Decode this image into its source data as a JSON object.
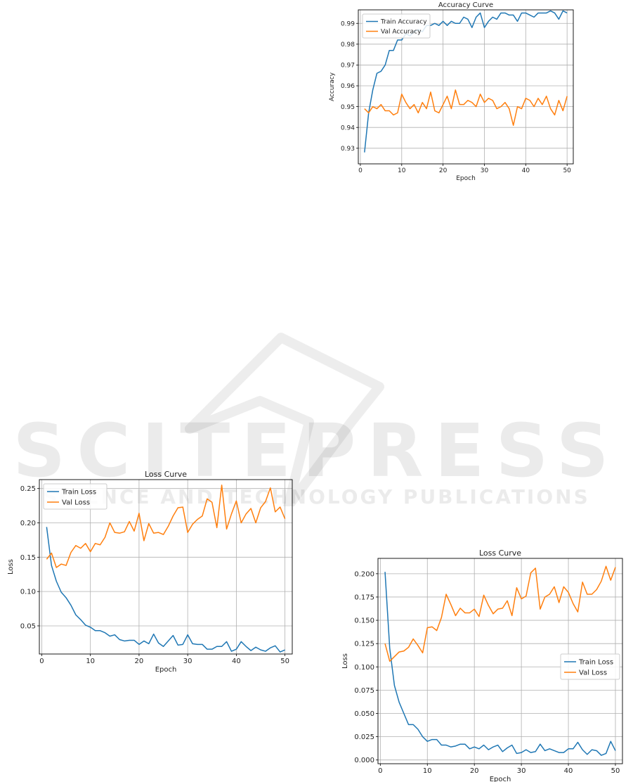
{
  "watermark": {
    "main": "SCITEPRESS",
    "sub": "SCIENCE AND TECHNOLOGY PUBLICATIONS"
  },
  "colors": {
    "train": "#1f77b4",
    "val": "#ff7f0e",
    "grid": "#b0b0b0",
    "axis": "#000000"
  },
  "chart_data": [
    {
      "id": "accuracy",
      "type": "line",
      "title": "Accuracy Curve",
      "xlabel": "Epoch",
      "ylabel": "Accuracy",
      "xlim": [
        -0.5,
        51.5
      ],
      "ylim": [
        0.9225,
        0.9965
      ],
      "xticks": [
        0,
        10,
        20,
        30,
        40,
        50
      ],
      "yticks": [
        0.93,
        0.94,
        0.95,
        0.96,
        0.97,
        0.98,
        0.99
      ],
      "ytick_labels": [
        "0.93",
        "0.94",
        "0.95",
        "0.96",
        "0.97",
        "0.98",
        "0.99"
      ],
      "grid": true,
      "legend": "upper-left",
      "series": [
        {
          "name": "Train Accuracy",
          "color": "#1f77b4",
          "values": [
            0.928,
            0.947,
            0.958,
            0.966,
            0.967,
            0.97,
            0.977,
            0.977,
            0.982,
            0.982,
            0.985,
            0.984,
            0.986,
            0.987,
            0.986,
            0.989,
            0.989,
            0.99,
            0.989,
            0.991,
            0.989,
            0.991,
            0.99,
            0.99,
            0.993,
            0.992,
            0.988,
            0.993,
            0.995,
            0.988,
            0.991,
            0.993,
            0.992,
            0.995,
            0.995,
            0.994,
            0.994,
            0.991,
            0.995,
            0.995,
            0.994,
            0.993,
            0.995,
            0.995,
            0.995,
            0.996,
            0.995,
            0.992,
            0.996,
            0.995
          ]
        },
        {
          "name": "Val Accuracy",
          "color": "#ff7f0e",
          "values": [
            0.949,
            0.947,
            0.95,
            0.949,
            0.951,
            0.948,
            0.948,
            0.946,
            0.947,
            0.956,
            0.952,
            0.949,
            0.951,
            0.947,
            0.952,
            0.949,
            0.957,
            0.948,
            0.947,
            0.951,
            0.955,
            0.949,
            0.958,
            0.951,
            0.951,
            0.953,
            0.952,
            0.95,
            0.956,
            0.952,
            0.954,
            0.953,
            0.949,
            0.95,
            0.952,
            0.949,
            0.941,
            0.95,
            0.949,
            0.954,
            0.953,
            0.95,
            0.954,
            0.951,
            0.955,
            0.949,
            0.946,
            0.953,
            0.948,
            0.955
          ]
        }
      ]
    },
    {
      "id": "loss-left",
      "type": "line",
      "title": "Loss Curve",
      "xlabel": "Epoch",
      "ylabel": "Loss",
      "xlim": [
        -0.5,
        51.5
      ],
      "ylim": [
        0.009,
        0.263
      ],
      "xticks": [
        0,
        10,
        20,
        30,
        40,
        50
      ],
      "yticks": [
        0.05,
        0.1,
        0.15,
        0.2,
        0.25
      ],
      "ytick_labels": [
        "0.05",
        "0.10",
        "0.15",
        "0.20",
        "0.25"
      ],
      "grid": true,
      "legend": "upper-left",
      "series": [
        {
          "name": "Train Loss",
          "color": "#1f77b4",
          "values": [
            0.194,
            0.138,
            0.115,
            0.099,
            0.091,
            0.08,
            0.066,
            0.059,
            0.051,
            0.048,
            0.043,
            0.043,
            0.04,
            0.035,
            0.037,
            0.03,
            0.028,
            0.029,
            0.029,
            0.023,
            0.028,
            0.024,
            0.038,
            0.025,
            0.02,
            0.028,
            0.036,
            0.022,
            0.023,
            0.037,
            0.024,
            0.023,
            0.023,
            0.016,
            0.016,
            0.02,
            0.02,
            0.027,
            0.013,
            0.016,
            0.027,
            0.02,
            0.014,
            0.019,
            0.015,
            0.013,
            0.018,
            0.021,
            0.012,
            0.015
          ]
        },
        {
          "name": "Val Loss",
          "color": "#ff7f0e",
          "values": [
            0.147,
            0.156,
            0.135,
            0.14,
            0.138,
            0.157,
            0.167,
            0.163,
            0.17,
            0.158,
            0.17,
            0.168,
            0.179,
            0.2,
            0.186,
            0.185,
            0.187,
            0.202,
            0.188,
            0.214,
            0.174,
            0.199,
            0.185,
            0.186,
            0.183,
            0.195,
            0.21,
            0.222,
            0.223,
            0.186,
            0.198,
            0.205,
            0.21,
            0.235,
            0.23,
            0.193,
            0.255,
            0.191,
            0.213,
            0.232,
            0.2,
            0.213,
            0.221,
            0.2,
            0.222,
            0.231,
            0.251,
            0.216,
            0.223,
            0.206
          ]
        }
      ]
    },
    {
      "id": "loss-right",
      "type": "line",
      "title": "Loss Curve",
      "xlabel": "Epoch",
      "ylabel": "Loss",
      "xlim": [
        -0.5,
        51.5
      ],
      "ylim": [
        -0.004,
        0.2165
      ],
      "xticks": [
        0,
        10,
        20,
        30,
        40,
        50
      ],
      "yticks": [
        0.0,
        0.025,
        0.05,
        0.075,
        0.1,
        0.125,
        0.15,
        0.175,
        0.2
      ],
      "ytick_labels": [
        "0.000",
        "0.025",
        "0.050",
        "0.075",
        "0.100",
        "0.125",
        "0.150",
        "0.175",
        "0.200"
      ],
      "grid": true,
      "legend": "center-right",
      "series": [
        {
          "name": "Train Loss",
          "color": "#1f77b4",
          "values": [
            0.202,
            0.12,
            0.08,
            0.062,
            0.05,
            0.038,
            0.038,
            0.033,
            0.025,
            0.02,
            0.022,
            0.022,
            0.016,
            0.016,
            0.014,
            0.015,
            0.017,
            0.017,
            0.012,
            0.014,
            0.012,
            0.016,
            0.011,
            0.014,
            0.016,
            0.009,
            0.013,
            0.016,
            0.007,
            0.008,
            0.011,
            0.008,
            0.009,
            0.017,
            0.01,
            0.012,
            0.01,
            0.008,
            0.008,
            0.012,
            0.012,
            0.019,
            0.011,
            0.006,
            0.011,
            0.01,
            0.005,
            0.007,
            0.02,
            0.01
          ]
        },
        {
          "name": "Val Loss",
          "color": "#ff7f0e",
          "values": [
            0.125,
            0.106,
            0.111,
            0.116,
            0.117,
            0.121,
            0.13,
            0.123,
            0.115,
            0.142,
            0.143,
            0.139,
            0.153,
            0.178,
            0.167,
            0.155,
            0.163,
            0.158,
            0.158,
            0.162,
            0.154,
            0.177,
            0.166,
            0.157,
            0.162,
            0.163,
            0.171,
            0.155,
            0.185,
            0.173,
            0.176,
            0.201,
            0.206,
            0.162,
            0.175,
            0.178,
            0.186,
            0.169,
            0.186,
            0.18,
            0.168,
            0.159,
            0.191,
            0.178,
            0.178,
            0.183,
            0.192,
            0.208,
            0.193,
            0.207
          ]
        }
      ]
    }
  ]
}
